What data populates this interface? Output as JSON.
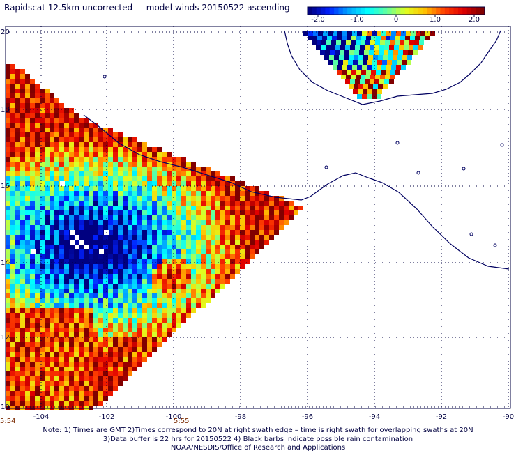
{
  "title": "Rapidscat 12.5km uncorrected — model winds 20150522 ascending",
  "colorbar": {
    "ticks": [
      "-2.0",
      "-1.0",
      "0",
      "1.0",
      "2.0"
    ],
    "range": [
      -2.0,
      2.0
    ],
    "colors": [
      "#000080",
      "#0020ff",
      "#00a0ff",
      "#00ffff",
      "#60ffa0",
      "#e0ff20",
      "#ffc000",
      "#ff4000",
      "#e00000",
      "#800000"
    ]
  },
  "axes": {
    "lon_labels": [
      "-104",
      "-102",
      "-100",
      "-98",
      "-96",
      "-94",
      "-92",
      "-90"
    ],
    "lat_labels": [
      "20",
      "18",
      "16",
      "14",
      "12",
      "10"
    ]
  },
  "time_labels": [
    "5:54",
    "5:55"
  ],
  "note_lines": [
    "Note: 1) Times are GMT 2)Times correspond to 20N at right swath edge – time is right swath for overlapping swaths at 20N",
    "3)Data buffer is 22 hrs for 20150522 4) Black barbs indicate possible rain contamination",
    "NOAA/NESDIS/Office of Research and Applications"
  ]
}
